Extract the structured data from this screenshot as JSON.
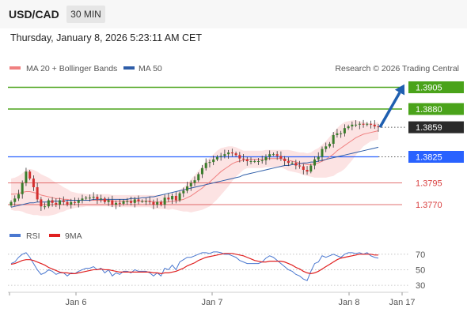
{
  "header": {
    "symbol": "USD/CAD",
    "timeframe": "30 MIN"
  },
  "datetime": "Thursday, January 8, 2026 5:23:11 AM CET",
  "legend": {
    "bollinger": "MA 20 + Bollinger Bands",
    "ma50": "MA 50",
    "credit": "Research © 2026 Trading Central"
  },
  "colors": {
    "bollinger": "#f08080",
    "ma50": "#2e5da8",
    "resistance": "#4aa31a",
    "current": "#2a2a2a",
    "support_blue": "#2962ff",
    "support_red": "#d94040",
    "rsi": "#4a78d0",
    "rsi_ma": "#e02020",
    "candle_up": "#3a7d2c",
    "candle_down": "#d32f2f",
    "arrow": "#1f5fb0"
  },
  "chart_data": [
    {
      "type": "line",
      "ylim": [
        1.374,
        1.392
      ],
      "x_labels": [
        "Jan 6",
        "Jan 7",
        "Jan 8",
        "Jan 17"
      ],
      "levels": [
        {
          "value": 1.3905,
          "label": "1.3905",
          "kind": "resistance"
        },
        {
          "value": 1.388,
          "label": "1.3880",
          "kind": "resistance"
        },
        {
          "value": 1.3859,
          "label": "1.3859",
          "kind": "current"
        },
        {
          "value": 1.3825,
          "label": "1.3825",
          "kind": "support_blue"
        },
        {
          "value": 1.3795,
          "label": "1.3795",
          "kind": "support_red"
        },
        {
          "value": 1.377,
          "label": "1.3770",
          "kind": "support_red"
        }
      ],
      "price": [
        1.3773,
        1.3777,
        1.3782,
        1.3795,
        1.3808,
        1.38,
        1.379,
        1.3776,
        1.3768,
        1.3768,
        1.3775,
        1.3772,
        1.377,
        1.3775,
        1.3773,
        1.377,
        1.3773,
        1.3772,
        1.3775,
        1.3777,
        1.3778,
        1.3778,
        1.3779,
        1.3776,
        1.3777,
        1.3773,
        1.3775,
        1.377,
        1.3772,
        1.3771,
        1.3774,
        1.3774,
        1.3772,
        1.3776,
        1.3774,
        1.3774,
        1.3774,
        1.3773,
        1.377,
        1.3773,
        1.377,
        1.3778,
        1.3776,
        1.378,
        1.3775,
        1.3783,
        1.3786,
        1.3791,
        1.3795,
        1.3798,
        1.3805,
        1.3812,
        1.3818,
        1.3819,
        1.3822,
        1.3825,
        1.3826,
        1.3828,
        1.383,
        1.3829,
        1.3827,
        1.3823,
        1.3822,
        1.382,
        1.382,
        1.382,
        1.382,
        1.3821,
        1.3825,
        1.3828,
        1.3828,
        1.3826,
        1.3823,
        1.382,
        1.3818,
        1.3818,
        1.3815,
        1.3814,
        1.381,
        1.3808,
        1.3815,
        1.3822,
        1.3825,
        1.3834,
        1.3837,
        1.384,
        1.385,
        1.3852,
        1.3852,
        1.3858,
        1.386,
        1.3862,
        1.3862,
        1.3863,
        1.3862,
        1.3863,
        1.3862,
        1.386,
        1.3859
      ],
      "bb_mid": [
        1.3782,
        1.3782,
        1.3783,
        1.3784,
        1.3785,
        1.3785,
        1.3784,
        1.3783,
        1.3781,
        1.378,
        1.3779,
        1.3778,
        1.3777,
        1.3777,
        1.3776,
        1.3776,
        1.3775,
        1.3775,
        1.3775,
        1.3775,
        1.3775,
        1.3775,
        1.3775,
        1.3775,
        1.3775,
        1.3775,
        1.3775,
        1.3774,
        1.3774,
        1.3774,
        1.3774,
        1.3774,
        1.3774,
        1.3774,
        1.3774,
        1.3774,
        1.3774,
        1.3774,
        1.3773,
        1.3773,
        1.3773,
        1.3773,
        1.3773,
        1.3774,
        1.3774,
        1.3775,
        1.3776,
        1.3778,
        1.378,
        1.3783,
        1.3786,
        1.3789,
        1.3793,
        1.3796,
        1.38,
        1.3804,
        1.3808,
        1.3811,
        1.3814,
        1.3817,
        1.3819,
        1.382,
        1.3821,
        1.3822,
        1.3822,
        1.3822,
        1.3822,
        1.3822,
        1.3823,
        1.3823,
        1.3823,
        1.3823,
        1.3823,
        1.3822,
        1.3821,
        1.382,
        1.3819,
        1.3818,
        1.3817,
        1.3816,
        1.3816,
        1.3817,
        1.3818,
        1.382,
        1.3822,
        1.3825,
        1.3828,
        1.3832,
        1.3835,
        1.3838,
        1.3841,
        1.3844,
        1.3847,
        1.3849,
        1.3851,
        1.3852,
        1.3853,
        1.3854,
        1.3855
      ],
      "bb_width": [
        0.0018,
        0.0019,
        0.002,
        0.0022,
        0.0025,
        0.0026,
        0.0026,
        0.0025,
        0.0024,
        0.0023,
        0.0022,
        0.002,
        0.0018,
        0.0016,
        0.0014,
        0.0012,
        0.001,
        0.0009,
        0.0008,
        0.0008,
        0.0007,
        0.0007,
        0.0007,
        0.0007,
        0.0007,
        0.0007,
        0.0007,
        0.0007,
        0.0007,
        0.0007,
        0.0007,
        0.0007,
        0.0007,
        0.0007,
        0.0007,
        0.0007,
        0.0007,
        0.0007,
        0.0008,
        0.0008,
        0.0008,
        0.0008,
        0.0009,
        0.0009,
        0.001,
        0.0012,
        0.0014,
        0.0016,
        0.0019,
        0.0021,
        0.0023,
        0.0025,
        0.0027,
        0.0028,
        0.0028,
        0.0028,
        0.0027,
        0.0025,
        0.0023,
        0.002,
        0.0017,
        0.0014,
        0.0011,
        0.001,
        0.001,
        0.001,
        0.001,
        0.001,
        0.001,
        0.001,
        0.001,
        0.001,
        0.001,
        0.0011,
        0.0012,
        0.0012,
        0.0012,
        0.0012,
        0.0013,
        0.0013,
        0.0014,
        0.0016,
        0.0017,
        0.0019,
        0.0021,
        0.0023,
        0.0025,
        0.0026,
        0.0027,
        0.0027,
        0.0025,
        0.0023,
        0.002,
        0.0017,
        0.0014,
        0.0012,
        0.001,
        0.001,
        0.001
      ],
      "ma50": [
        1.3767,
        1.3768,
        1.3769,
        1.377,
        1.3771,
        1.3772,
        1.3772,
        1.3773,
        1.3773,
        1.3773,
        1.3773,
        1.3774,
        1.3774,
        1.3774,
        1.3774,
        1.3775,
        1.3775,
        1.3775,
        1.3775,
        1.3775,
        1.3775,
        1.3775,
        1.3776,
        1.3776,
        1.3776,
        1.3776,
        1.3776,
        1.3776,
        1.3776,
        1.3776,
        1.3776,
        1.3776,
        1.3777,
        1.3777,
        1.3777,
        1.3778,
        1.3778,
        1.3779,
        1.3779,
        1.378,
        1.3781,
        1.3782,
        1.3783,
        1.3784,
        1.3785,
        1.3786,
        1.3787,
        1.3788,
        1.3789,
        1.379,
        1.3791,
        1.3792,
        1.3793,
        1.3794,
        1.3795,
        1.3796,
        1.3797,
        1.3798,
        1.3799,
        1.38,
        1.3801,
        1.3802,
        1.3804,
        1.3805,
        1.3806,
        1.3807,
        1.3808,
        1.3809,
        1.381,
        1.3811,
        1.3812,
        1.3813,
        1.3814,
        1.3815,
        1.3815,
        1.3816,
        1.3816,
        1.3817,
        1.3818,
        1.3818,
        1.3819,
        1.3819,
        1.382,
        1.3821,
        1.3822,
        1.3823,
        1.3824,
        1.3825,
        1.3826,
        1.3827,
        1.3828,
        1.3829,
        1.383,
        1.3831,
        1.3832,
        1.3833,
        1.3834,
        1.3835,
        1.3836
      ]
    },
    {
      "type": "line",
      "legend": [
        "RSI",
        "9MA"
      ],
      "ylim": [
        25,
        80
      ],
      "y_ticks": [
        70,
        50,
        30
      ],
      "rsi": [
        58,
        60,
        66,
        70,
        72,
        66,
        58,
        50,
        44,
        46,
        50,
        48,
        44,
        46,
        46,
        42,
        46,
        45,
        48,
        50,
        52,
        52,
        54,
        50,
        52,
        46,
        50,
        42,
        46,
        44,
        48,
        48,
        46,
        50,
        48,
        48,
        48,
        46,
        42,
        46,
        42,
        52,
        50,
        56,
        50,
        60,
        63,
        66,
        66,
        68,
        70,
        72,
        72,
        71,
        73,
        73,
        72,
        70,
        70,
        68,
        66,
        62,
        60,
        58,
        58,
        58,
        58,
        60,
        65,
        68,
        66,
        62,
        58,
        54,
        50,
        48,
        44,
        42,
        38,
        36,
        48,
        58,
        60,
        68,
        66,
        68,
        70,
        68,
        66,
        70,
        72,
        72,
        71,
        72,
        70,
        72,
        68,
        66,
        65
      ],
      "rsi_ma": [
        57,
        58,
        60,
        62,
        63,
        63,
        62,
        60,
        58,
        56,
        53,
        51,
        49,
        47,
        46,
        46,
        45,
        45,
        46,
        47,
        48,
        49,
        50,
        50,
        51,
        50,
        50,
        49,
        48,
        47,
        47,
        47,
        47,
        47,
        47,
        47,
        47,
        47,
        46,
        46,
        45,
        46,
        46,
        47,
        48,
        50,
        52,
        55,
        57,
        59,
        62,
        64,
        66,
        67,
        68,
        69,
        70,
        71,
        71,
        71,
        70,
        69,
        68,
        66,
        64,
        62,
        61,
        60,
        60,
        61,
        61,
        61,
        61,
        60,
        58,
        56,
        53,
        51,
        48,
        46,
        45,
        46,
        48,
        51,
        54,
        57,
        60,
        63,
        65,
        66,
        67,
        68,
        69,
        70,
        70,
        70,
        70,
        69,
        69
      ]
    }
  ]
}
